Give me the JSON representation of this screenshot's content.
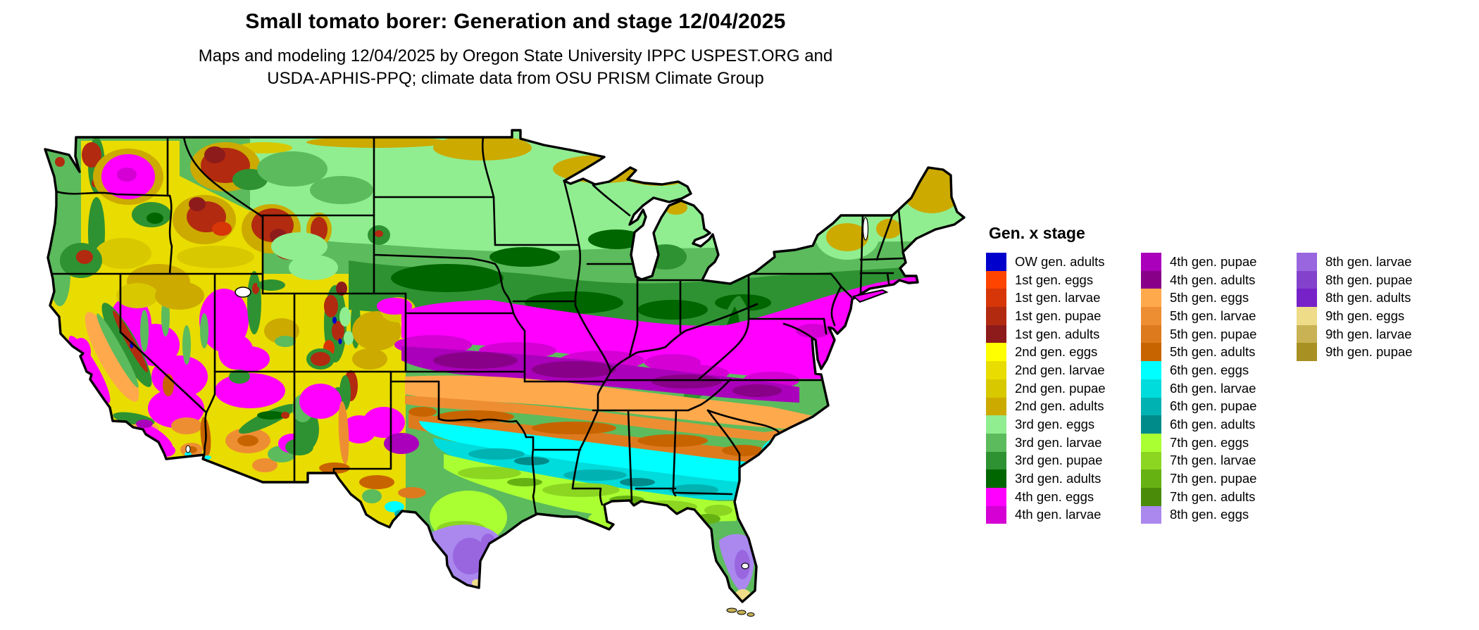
{
  "header": {
    "title": "Small tomato borer: Generation and stage 12/04/2025",
    "subtitle_line1": "Maps and modeling 12/04/2025 by Oregon State University IPPC USPEST.ORG and",
    "subtitle_line2": "USDA-APHIS-PPQ; climate data from OSU PRISM Climate Group"
  },
  "legend": {
    "title": "Gen. x stage",
    "columns": [
      [
        {
          "label": "OW gen. adults",
          "color": "#0000CC"
        },
        {
          "label": "1st gen. eggs",
          "color": "#FF4400"
        },
        {
          "label": "1st gen. larvae",
          "color": "#D63608"
        },
        {
          "label": "1st gen. pupae",
          "color": "#B22A10"
        },
        {
          "label": "1st gen. adults",
          "color": "#8E1B1B"
        },
        {
          "label": "2nd gen. eggs",
          "color": "#FFFF00"
        },
        {
          "label": "2nd gen. larvae",
          "color": "#E9DC00"
        },
        {
          "label": "2nd gen. pupae",
          "color": "#D8C800"
        },
        {
          "label": "2nd gen. adults",
          "color": "#CCAA00"
        },
        {
          "label": "3rd gen. eggs",
          "color": "#90EE90"
        },
        {
          "label": "3rd gen. larvae",
          "color": "#5CBB5C"
        },
        {
          "label": "3rd gen. pupae",
          "color": "#2E9232"
        },
        {
          "label": "3rd gen. adults",
          "color": "#006600"
        },
        {
          "label": "4th gen. eggs",
          "color": "#FF00FF"
        },
        {
          "label": "4th gen. larvae",
          "color": "#D400D4"
        }
      ],
      [
        {
          "label": "4th gen. pupae",
          "color": "#AA00BB"
        },
        {
          "label": "4th gen. adults",
          "color": "#880088"
        },
        {
          "label": "5th gen. eggs",
          "color": "#FFA94D"
        },
        {
          "label": "5th gen. larvae",
          "color": "#EE8E33"
        },
        {
          "label": "5th gen. pupae",
          "color": "#DD7A1E"
        },
        {
          "label": "5th gen. adults",
          "color": "#C86400"
        },
        {
          "label": "6th gen. eggs",
          "color": "#00FFFF"
        },
        {
          "label": "6th gen. larvae",
          "color": "#00DBDB"
        },
        {
          "label": "6th gen. pupae",
          "color": "#00B2B2"
        },
        {
          "label": "6th gen. adults",
          "color": "#008B8B"
        },
        {
          "label": "7th gen. eggs",
          "color": "#AAFF33"
        },
        {
          "label": "7th gen. larvae",
          "color": "#8CD622"
        },
        {
          "label": "7th gen. pupae",
          "color": "#66B212"
        },
        {
          "label": "7th gen. adults",
          "color": "#4A8C0A"
        },
        {
          "label": "8th gen. eggs",
          "color": "#AA88EE"
        }
      ],
      [
        {
          "label": "8th gen. larvae",
          "color": "#9966E0"
        },
        {
          "label": "8th gen. pupae",
          "color": "#8442CC"
        },
        {
          "label": "8th gen. adults",
          "color": "#7722C8"
        },
        {
          "label": "9th gen. eggs",
          "color": "#EEDC88"
        },
        {
          "label": "9th gen. larvae",
          "color": "#C9B254"
        },
        {
          "label": "9th gen. pupae",
          "color": "#A89122"
        }
      ]
    ]
  },
  "map": {
    "region": "Contiguous United States",
    "kind": "raster choropleth of insect generation and life stage",
    "water_color": "#ffffff",
    "border_color": "#000000",
    "north_to_south_progression": [
      "2nd gen. adults (far north MN/WI/MI/Maine)",
      "3rd gen. eggs-adults (northern plains, Great Lakes, Northeast)",
      "4th gen. eggs-adults (central plains, Ohio valley, mid-Atlantic)",
      "5th gen. eggs-adults (OK, AR, TN, NC)",
      "6th gen. eggs-adults (TX, MS, AL, GA, SC)",
      "7th gen. eggs-adults (south TX, LA coast, north FL)",
      "8th gen. (south TX tip, central/south FL)",
      "9th gen. (FL tip and Keys)"
    ]
  }
}
